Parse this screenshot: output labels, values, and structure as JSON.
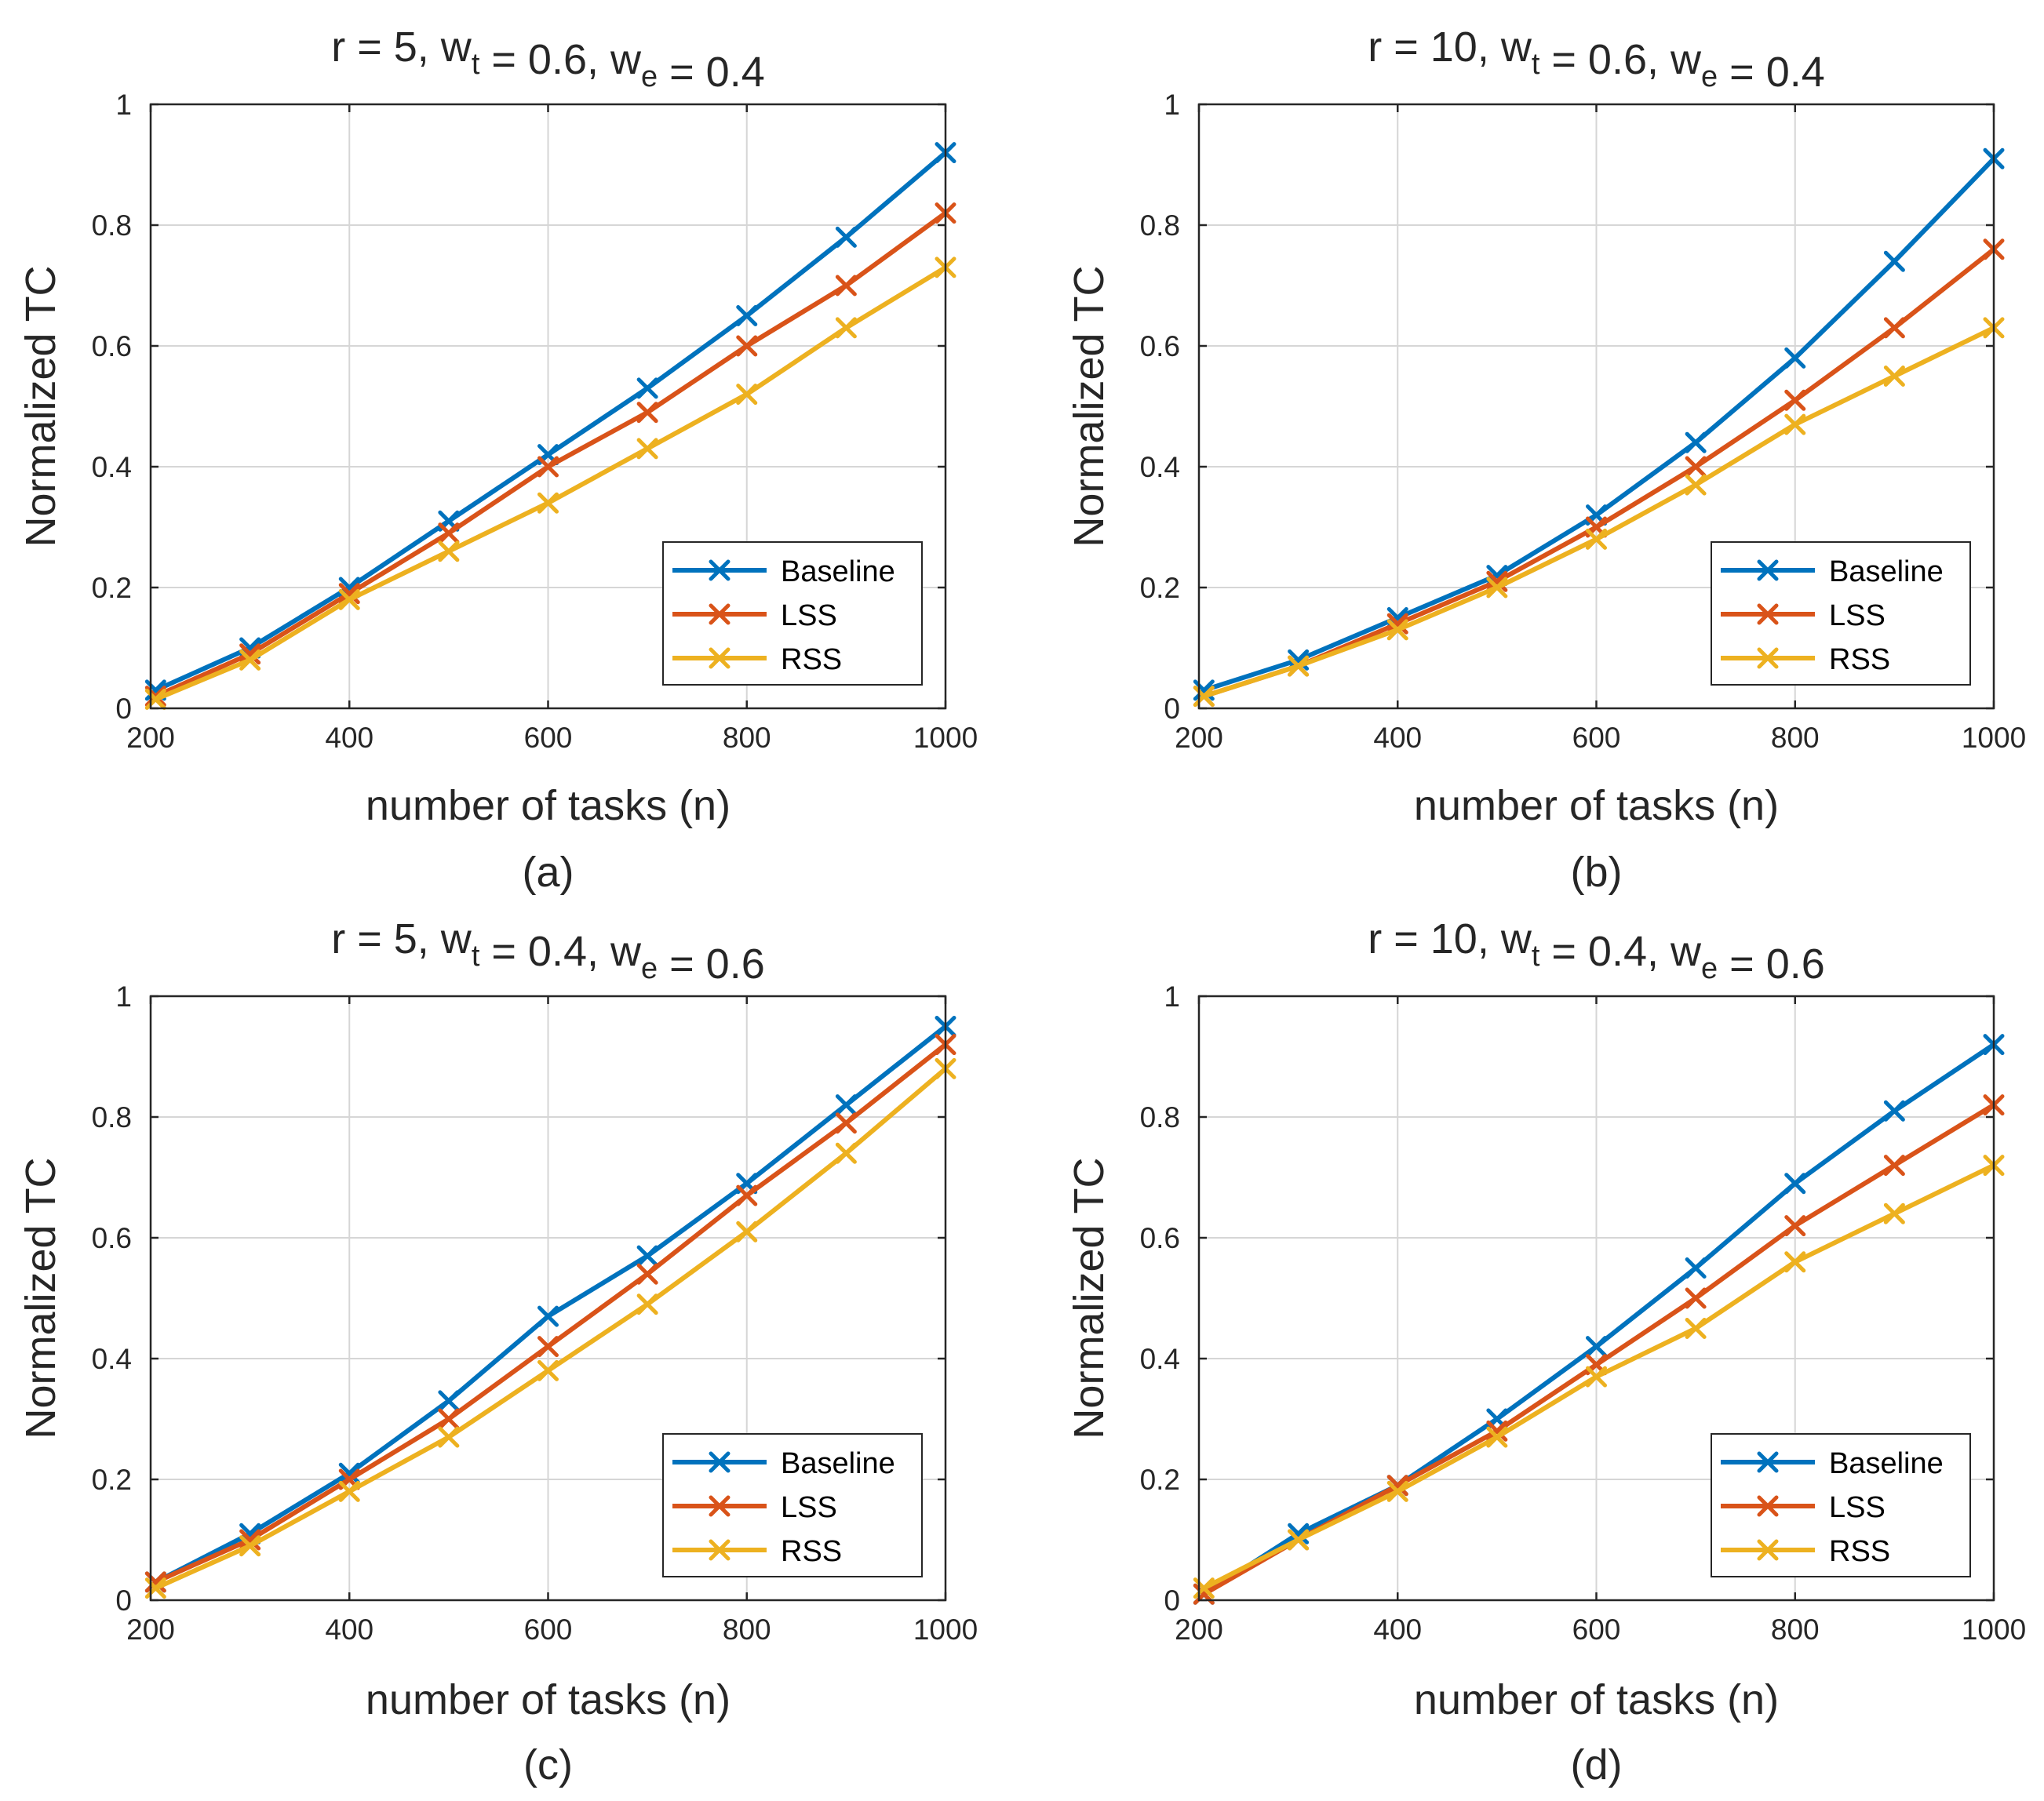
{
  "figure": {
    "panels_note": "2x2 grid of line charts"
  },
  "legend_labels": [
    "Baseline",
    "LSS",
    "RSS"
  ],
  "series_colors": {
    "Baseline": "#0072BD",
    "LSS": "#D95319",
    "RSS": "#EDB120"
  },
  "chart_data": [
    {
      "type": "line",
      "caption": "(a)",
      "title": {
        "r": "r = 5, w",
        "sub1": "t",
        "mid": " = 0.6, w",
        "sub2": "e",
        "end": " = 0.4"
      },
      "xlabel": "number of tasks (n)",
      "ylabel": "Normalized TC",
      "xlim": [
        200,
        1000
      ],
      "ylim": [
        0,
        1
      ],
      "xticks": [
        "200",
        "400",
        "600",
        "800",
        "1000"
      ],
      "yticks": [
        "0",
        "0.2",
        "0.4",
        "0.6",
        "0.8",
        "1"
      ],
      "legend_position": "bottom-right",
      "x": [
        205,
        300,
        400,
        500,
        600,
        700,
        800,
        900,
        1000
      ],
      "series": [
        {
          "name": "Baseline",
          "values": [
            0.03,
            0.1,
            0.2,
            0.31,
            0.42,
            0.53,
            0.65,
            0.78,
            0.92
          ]
        },
        {
          "name": "LSS",
          "values": [
            0.02,
            0.09,
            0.19,
            0.29,
            0.4,
            0.49,
            0.6,
            0.7,
            0.82
          ]
        },
        {
          "name": "RSS",
          "values": [
            0.015,
            0.08,
            0.18,
            0.26,
            0.34,
            0.43,
            0.52,
            0.63,
            0.73
          ]
        }
      ]
    },
    {
      "type": "line",
      "caption": "(b)",
      "title": {
        "r": "r = 10, w",
        "sub1": "t",
        "mid": " = 0.6, w",
        "sub2": "e",
        "end": " = 0.4"
      },
      "xlabel": "number of tasks (n)",
      "ylabel": "Normalized TC",
      "xlim": [
        200,
        1000
      ],
      "ylim": [
        0,
        1
      ],
      "xticks": [
        "200",
        "400",
        "600",
        "800",
        "1000"
      ],
      "yticks": [
        "0",
        "0.2",
        "0.4",
        "0.6",
        "0.8",
        "1"
      ],
      "legend_position": "bottom-right",
      "x": [
        205,
        300,
        400,
        500,
        600,
        700,
        800,
        900,
        1000
      ],
      "series": [
        {
          "name": "Baseline",
          "values": [
            0.03,
            0.08,
            0.15,
            0.22,
            0.32,
            0.44,
            0.58,
            0.74,
            0.91
          ]
        },
        {
          "name": "LSS",
          "values": [
            0.02,
            0.07,
            0.14,
            0.21,
            0.3,
            0.4,
            0.51,
            0.63,
            0.76
          ]
        },
        {
          "name": "RSS",
          "values": [
            0.02,
            0.07,
            0.13,
            0.2,
            0.28,
            0.37,
            0.47,
            0.55,
            0.63
          ]
        }
      ]
    },
    {
      "type": "line",
      "caption": "(c)",
      "title": {
        "r": "r = 5, w",
        "sub1": "t",
        "mid": " = 0.4, w",
        "sub2": "e",
        "end": " = 0.6"
      },
      "xlabel": "number of tasks (n)",
      "ylabel": "Normalized TC",
      "xlim": [
        200,
        1000
      ],
      "ylim": [
        0,
        1
      ],
      "xticks": [
        "200",
        "400",
        "600",
        "800",
        "1000"
      ],
      "yticks": [
        "0",
        "0.2",
        "0.4",
        "0.6",
        "0.8",
        "1"
      ],
      "legend_position": "bottom-right",
      "x": [
        205,
        300,
        400,
        500,
        600,
        700,
        800,
        900,
        1000
      ],
      "series": [
        {
          "name": "Baseline",
          "values": [
            0.03,
            0.11,
            0.21,
            0.33,
            0.47,
            0.57,
            0.69,
            0.82,
            0.95
          ]
        },
        {
          "name": "LSS",
          "values": [
            0.03,
            0.1,
            0.2,
            0.3,
            0.42,
            0.54,
            0.67,
            0.79,
            0.92
          ]
        },
        {
          "name": "RSS",
          "values": [
            0.02,
            0.09,
            0.18,
            0.27,
            0.38,
            0.49,
            0.61,
            0.74,
            0.88
          ]
        }
      ]
    },
    {
      "type": "line",
      "caption": "(d)",
      "title": {
        "r": "r = 10, w",
        "sub1": "t",
        "mid": " = 0.4, w",
        "sub2": "e",
        "end": " = 0.6"
      },
      "xlabel": "number of tasks (n)",
      "ylabel": "Normalized TC",
      "xlim": [
        200,
        1000
      ],
      "ylim": [
        0,
        1
      ],
      "xticks": [
        "200",
        "400",
        "600",
        "800",
        "1000"
      ],
      "yticks": [
        "0",
        "0.2",
        "0.4",
        "0.6",
        "0.8",
        "1"
      ],
      "legend_position": "bottom-right",
      "x": [
        205,
        300,
        400,
        500,
        600,
        700,
        800,
        900,
        1000
      ],
      "series": [
        {
          "name": "Baseline",
          "values": [
            0.01,
            0.11,
            0.19,
            0.3,
            0.42,
            0.55,
            0.69,
            0.81,
            0.92
          ]
        },
        {
          "name": "LSS",
          "values": [
            0.01,
            0.1,
            0.19,
            0.28,
            0.39,
            0.5,
            0.62,
            0.72,
            0.82
          ]
        },
        {
          "name": "RSS",
          "values": [
            0.02,
            0.1,
            0.18,
            0.27,
            0.37,
            0.45,
            0.56,
            0.64,
            0.72
          ]
        }
      ]
    }
  ]
}
